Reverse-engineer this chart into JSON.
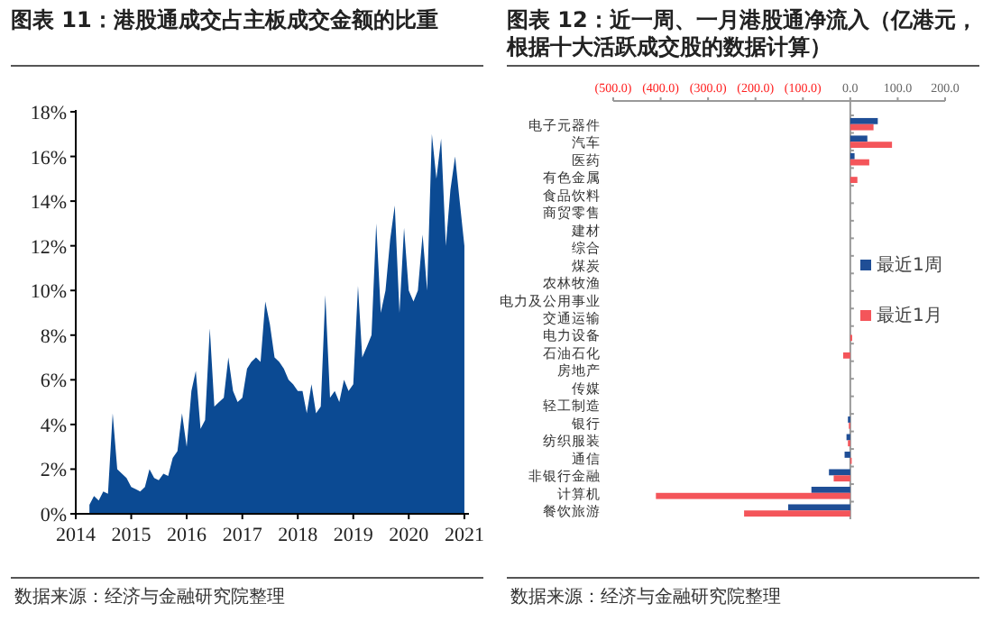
{
  "chart_data": [
    {
      "type": "area",
      "title": "图表 11：港股通成交占主板成交金额的比重",
      "annotations": [
        "数据来源：经济与金融研究院整理"
      ],
      "x": [
        "2014-04",
        "2014-05",
        "2014-06",
        "2014-07",
        "2014-08",
        "2014-09",
        "2014-10",
        "2014-11",
        "2014-12",
        "2015-01",
        "2015-02",
        "2015-03",
        "2015-04",
        "2015-05",
        "2015-06",
        "2015-07",
        "2015-08",
        "2015-09",
        "2015-10",
        "2015-11",
        "2015-12",
        "2016-01",
        "2016-02",
        "2016-03",
        "2016-04",
        "2016-05",
        "2016-06",
        "2016-07",
        "2016-08",
        "2016-09",
        "2016-10",
        "2016-11",
        "2016-12",
        "2017-01",
        "2017-02",
        "2017-03",
        "2017-04",
        "2017-05",
        "2017-06",
        "2017-07",
        "2017-08",
        "2017-09",
        "2017-10",
        "2017-11",
        "2017-12",
        "2018-01",
        "2018-02",
        "2018-03",
        "2018-04",
        "2018-05",
        "2018-06",
        "2018-07",
        "2018-08",
        "2018-09",
        "2018-10",
        "2018-11",
        "2018-12",
        "2019-01",
        "2019-02",
        "2019-03",
        "2019-04",
        "2019-05",
        "2019-06",
        "2019-07",
        "2019-08",
        "2019-09",
        "2019-10",
        "2019-11",
        "2019-12",
        "2020-01",
        "2020-02",
        "2020-03",
        "2020-04",
        "2020-05",
        "2020-06",
        "2020-07",
        "2020-08",
        "2020-09",
        "2020-10",
        "2020-11",
        "2020-12",
        "2021-01"
      ],
      "series": [
        {
          "color": "#0b4a93",
          "values": [
            0.4,
            0.8,
            0.6,
            1.0,
            0.9,
            4.5,
            2.0,
            1.8,
            1.6,
            1.2,
            1.1,
            1.0,
            1.2,
            2.0,
            1.6,
            1.5,
            1.8,
            1.7,
            2.5,
            2.8,
            4.5,
            3.0,
            5.5,
            6.4,
            3.8,
            4.2,
            8.3,
            4.8,
            5.0,
            5.2,
            7.0,
            5.5,
            5.0,
            5.2,
            6.5,
            6.8,
            7.0,
            6.8,
            9.5,
            8.5,
            7.0,
            6.8,
            6.5,
            6.0,
            5.8,
            5.5,
            5.5,
            4.5,
            5.8,
            4.5,
            4.8,
            9.8,
            5.2,
            5.5,
            5.0,
            6.0,
            5.5,
            5.8,
            10.2,
            7.0,
            7.5,
            8.0,
            13.0,
            9.0,
            10.0,
            12.3,
            13.8,
            9.0,
            12.8,
            10.0,
            9.5,
            10.0,
            12.5,
            10.0,
            17.0,
            15.0,
            16.8,
            12.0,
            14.5,
            16.0,
            14.0,
            12.0
          ]
        }
      ],
      "xlim": [
        "2014-01-01",
        "2021-01-31"
      ],
      "xticks": [
        {
          "value": "2014-01-01",
          "label": "2014"
        },
        {
          "value": "2015-01-01",
          "label": "2015"
        },
        {
          "value": "2016-01-01",
          "label": "2016"
        },
        {
          "value": "2017-01-01",
          "label": "2017"
        },
        {
          "value": "2018-01-01",
          "label": "2018"
        },
        {
          "value": "2019-01-01",
          "label": "2019"
        },
        {
          "value": "2020-01-01",
          "label": "2020"
        },
        {
          "value": "2021-01-01",
          "label": "2021"
        }
      ],
      "ylim": [
        0,
        18
      ],
      "yticks": [
        {
          "value": 0,
          "label": "0%"
        },
        {
          "value": 2,
          "label": "2%"
        },
        {
          "value": 4,
          "label": "4%"
        },
        {
          "value": 6,
          "label": "6%"
        },
        {
          "value": 8,
          "label": "8%"
        },
        {
          "value": 10,
          "label": "10%"
        },
        {
          "value": 12,
          "label": "12%"
        },
        {
          "value": 14,
          "label": "14%"
        },
        {
          "value": 16,
          "label": "16%"
        },
        {
          "value": 18,
          "label": "18%"
        }
      ]
    },
    {
      "type": "bar",
      "orientation": "horizontal",
      "title": "图表 12：近一周、一月港股通净流入（亿港元，根据十大活跃成交股的数据计算）",
      "annotations": [
        "数据来源：经济与金融研究院整理"
      ],
      "categories": [
        "电子元器件",
        "汽车",
        "医药",
        "有色金属",
        "食品饮料",
        "商贸零售",
        "建材",
        "综合",
        "煤炭",
        "农林牧渔",
        "电力及公用事业",
        "交通运输",
        "电力设备",
        "石油石化",
        "房地产",
        "传媒",
        "轻工制造",
        "银行",
        "纺织服装",
        "通信",
        "非银行金融",
        "计算机",
        "餐饮旅游"
      ],
      "series": [
        {
          "name": "最近1周",
          "color": "#1f4e96",
          "values": [
            58,
            36,
            9,
            0,
            0,
            0,
            0,
            0,
            0,
            0,
            0,
            0,
            0,
            0,
            0,
            0,
            0,
            -5,
            -8,
            -12,
            -45,
            -82,
            -131
          ]
        },
        {
          "name": "最近1月",
          "color": "#f4555a",
          "values": [
            49,
            88,
            40,
            15,
            0,
            0,
            0,
            0,
            0,
            0,
            0,
            0,
            4,
            -15,
            0,
            0,
            0,
            -3,
            -5,
            3,
            -35,
            -410,
            -224
          ]
        }
      ],
      "xlim": [
        -500,
        200
      ],
      "xticks": [
        {
          "value": -500,
          "label": "(500.0)"
        },
        {
          "value": -400,
          "label": "(400.0)"
        },
        {
          "value": -300,
          "label": "(300.0)"
        },
        {
          "value": -200,
          "label": "(200.0)"
        },
        {
          "value": -100,
          "label": "(100.0)"
        },
        {
          "value": 0,
          "label": "0.0"
        },
        {
          "value": 100,
          "label": "100.0"
        },
        {
          "value": 200,
          "label": "200.0"
        }
      ],
      "legend": "right"
    }
  ]
}
